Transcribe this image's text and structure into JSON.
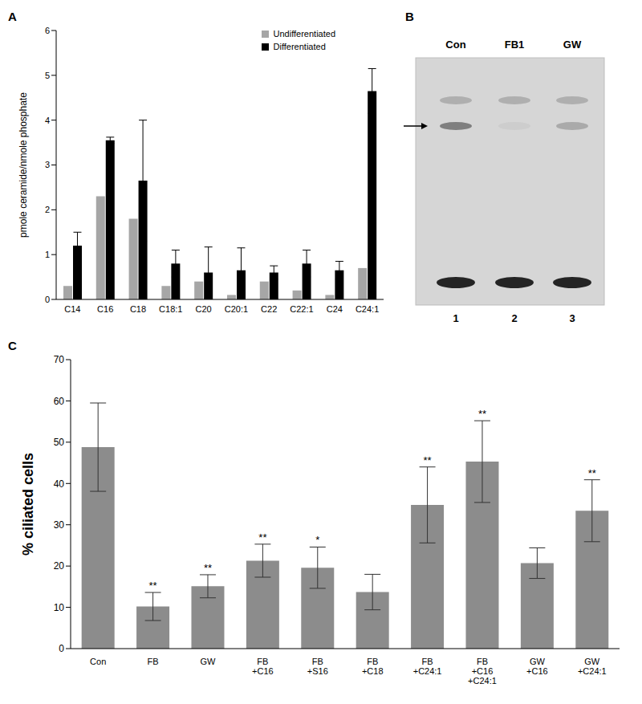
{
  "chart_data": [
    {
      "panel": "A",
      "type": "bar",
      "y_label": "pmole  ceramide/nmole phosphate",
      "categories": [
        "C14",
        "C16",
        "C18",
        "C18:1",
        "C20",
        "C20:1",
        "C22",
        "C22:1",
        "C24",
        "C24:1"
      ],
      "series": [
        {
          "name": "Undifferentiated",
          "color": "#a6a6a6",
          "values": [
            0.3,
            2.3,
            1.8,
            0.3,
            0.4,
            0.1,
            0.4,
            0.2,
            0.1,
            0.7
          ]
        },
        {
          "name": "Differentiated",
          "color": "#000000",
          "values": [
            1.2,
            3.55,
            2.65,
            0.8,
            0.6,
            0.65,
            0.6,
            0.8,
            0.65,
            4.65
          ],
          "errors": [
            0.3,
            0.07,
            1.35,
            0.3,
            0.57,
            0.5,
            0.15,
            0.3,
            0.2,
            0.5
          ]
        }
      ],
      "ylim": [
        0,
        6
      ],
      "yticks": [
        0,
        1,
        2,
        3,
        4,
        5,
        6
      ],
      "legend": "upper right",
      "grid": false
    },
    {
      "panel": "B",
      "type": "gel",
      "lanes": [
        {
          "label": "Con",
          "number": "1",
          "band": 1.0
        },
        {
          "label": "FB1",
          "number": "2",
          "band": 0.1
        },
        {
          "label": "GW",
          "number": "3",
          "band": 0.5
        }
      ]
    },
    {
      "panel": "C",
      "type": "bar",
      "y_label": "% ciliated cells",
      "categories": [
        "Con",
        "FB",
        "GW",
        "FB\n+C16",
        "FB\n+S16",
        "FB\n+C18",
        "FB\n+C24:1",
        "FB\n+C16\n+C24:1",
        "GW\n+C16",
        "GW\n+C24:1"
      ],
      "values": [
        48.8,
        10.2,
        15.1,
        21.3,
        19.6,
        13.7,
        34.8,
        45.3,
        20.7,
        33.4
      ],
      "errors": [
        10.7,
        3.4,
        2.8,
        4.0,
        5.0,
        4.3,
        9.2,
        9.9,
        3.7,
        7.5
      ],
      "significance": [
        null,
        "**",
        "**",
        "**",
        "*",
        null,
        "**",
        "**",
        null,
        "**"
      ],
      "color": "#8c8c8c",
      "ylim": [
        0,
        70
      ],
      "yticks": [
        0,
        10,
        20,
        30,
        40,
        50,
        60,
        70
      ],
      "grid": false
    }
  ]
}
